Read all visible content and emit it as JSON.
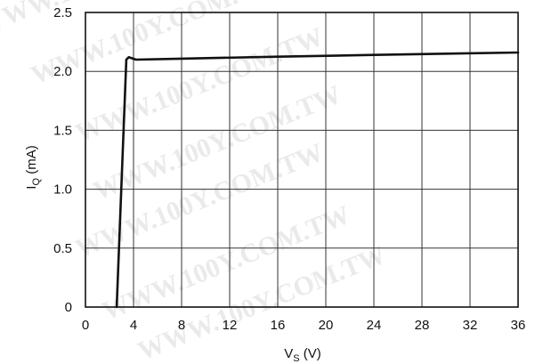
{
  "chart_data": {
    "type": "line",
    "xlabel": "V",
    "xlabel_sub": "S",
    "xlabel_unit": " (V)",
    "ylabel": "I",
    "ylabel_sub": "Q",
    "ylabel_unit": " (mA)",
    "xlim": [
      0,
      36
    ],
    "ylim": [
      0,
      2.5
    ],
    "grid": true,
    "x_ticks": [
      0,
      4,
      8,
      12,
      16,
      20,
      24,
      28,
      32,
      36
    ],
    "y_ticks": [
      0,
      0.5,
      1.0,
      1.5,
      2.0,
      2.5
    ],
    "x_tick_labels": [
      "0",
      "4",
      "8",
      "12",
      "16",
      "20",
      "24",
      "28",
      "32",
      "36"
    ],
    "y_tick_labels": [
      "0",
      "0.5",
      "1.0",
      "1.5",
      "2.0",
      "2.5"
    ],
    "series": [
      {
        "color": "#111111",
        "points": [
          {
            "x": 2.6,
            "y": 0
          },
          {
            "x": 3.4,
            "y": 2.1
          },
          {
            "x": 3.6,
            "y": 2.12
          },
          {
            "x": 3.9,
            "y": 2.11
          },
          {
            "x": 4.2,
            "y": 2.1
          },
          {
            "x": 8,
            "y": 2.108
          },
          {
            "x": 16,
            "y": 2.125
          },
          {
            "x": 24,
            "y": 2.14
          },
          {
            "x": 36,
            "y": 2.16
          }
        ]
      }
    ]
  },
  "watermark_text": "WWW.100Y.COM.TW"
}
